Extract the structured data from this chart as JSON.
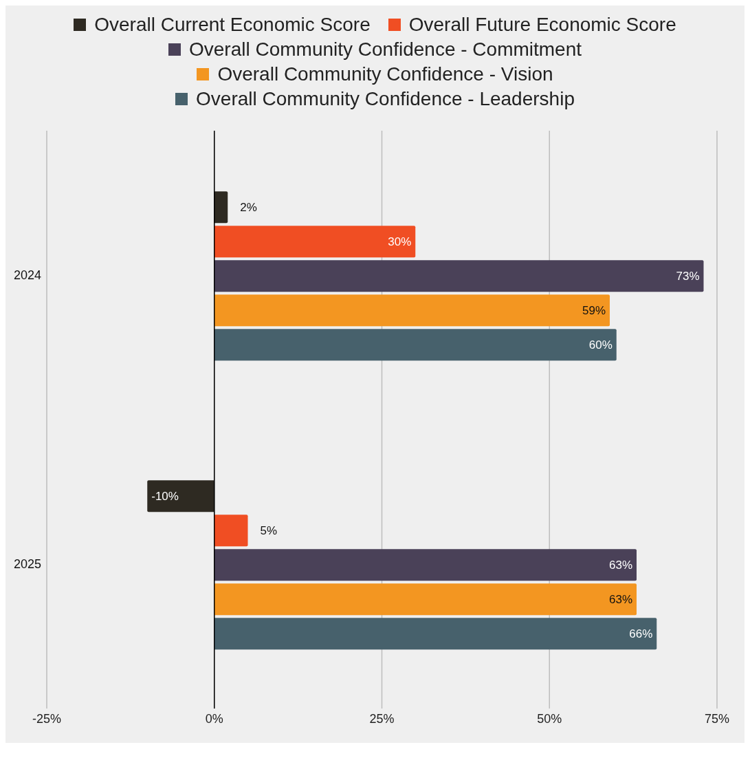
{
  "chart_data": {
    "type": "bar",
    "orientation": "horizontal",
    "categories": [
      "2024",
      "2025"
    ],
    "series": [
      {
        "name": "Overall Current Economic Score",
        "color": "#2e2a22",
        "values": [
          2,
          -10
        ],
        "value_labels": [
          "2%",
          "-10%"
        ]
      },
      {
        "name": "Overall Future Economic Score",
        "color": "#f04e23",
        "values": [
          30,
          5
        ],
        "value_labels": [
          "30%",
          "5%"
        ]
      },
      {
        "name": "Overall Community Confidence - Commitment",
        "color": "#4a4158",
        "values": [
          73,
          63
        ],
        "value_labels": [
          "73%",
          "63%"
        ]
      },
      {
        "name": "Overall Community Confidence - Vision",
        "color": "#f39621",
        "values": [
          59,
          63
        ],
        "value_labels": [
          "59%",
          "63%"
        ]
      },
      {
        "name": "Overall Community Confidence - Leadership",
        "color": "#47616c",
        "values": [
          60,
          66
        ],
        "value_labels": [
          "60%",
          "66%"
        ]
      }
    ],
    "xlim": [
      -25,
      75
    ],
    "xticks": [
      {
        "value": -25,
        "label": "-25%"
      },
      {
        "value": 0,
        "label": "0%"
      },
      {
        "value": 25,
        "label": "25%"
      },
      {
        "value": 50,
        "label": "50%"
      },
      {
        "value": 75,
        "label": "75%"
      }
    ],
    "ref_lines": [
      {
        "axis": "x",
        "value": 0,
        "color": "#000000"
      }
    ],
    "grid": "x",
    "legend": "top"
  }
}
